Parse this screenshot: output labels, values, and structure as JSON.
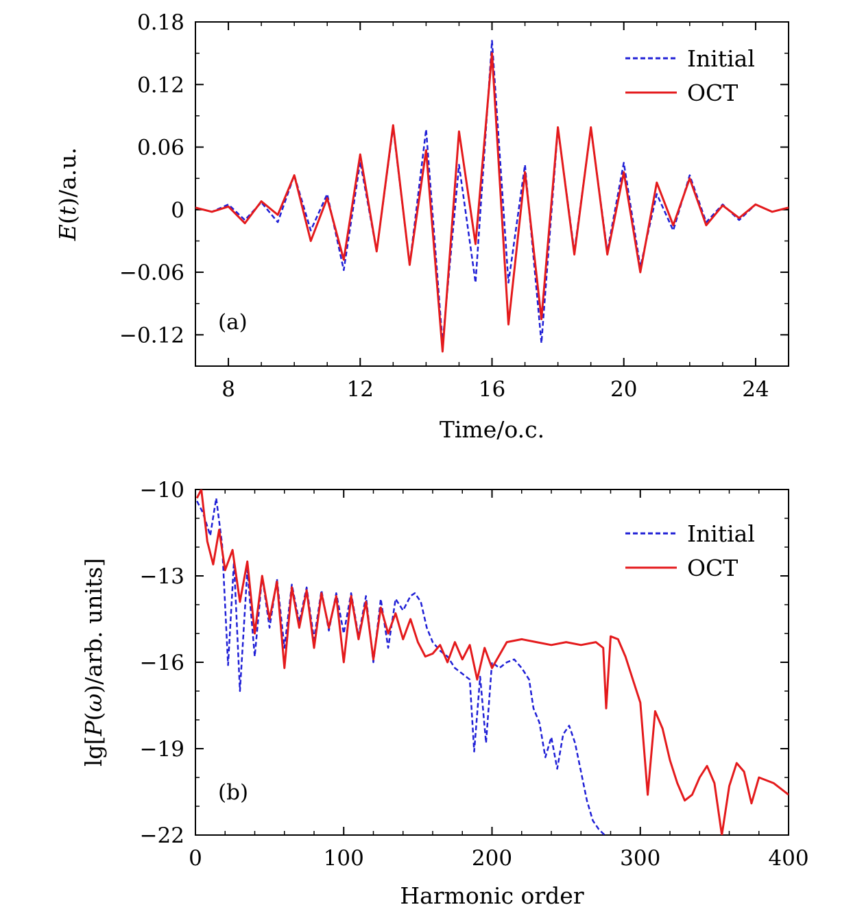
{
  "chart_data": [
    {
      "type": "line",
      "panel_label": "(a)",
      "xlabel": "Time/o.c.",
      "ylabel": "E(t)/a.u.",
      "xlim": [
        7,
        25
      ],
      "ylim": [
        -0.15,
        0.18
      ],
      "xticks": [
        8,
        12,
        16,
        20,
        24
      ],
      "xtick_labels": [
        "8",
        "12",
        "16",
        "20",
        "24"
      ],
      "yticks": [
        -0.12,
        -0.06,
        0,
        0.06,
        0.12,
        0.18
      ],
      "ytick_labels": [
        "−0.12",
        "−0.06",
        "0",
        "0.06",
        "0.12",
        "0.18"
      ],
      "legend": {
        "position": "top-right",
        "entries": [
          "Initial",
          "OCT"
        ]
      },
      "series": [
        {
          "name": "Initial",
          "style": "dashed",
          "color": "#1f1fd6",
          "x": [
            7,
            7.5,
            8,
            8.5,
            9,
            9.5,
            10,
            10.5,
            11,
            11.5,
            12,
            12.5,
            13,
            13.5,
            14,
            14.5,
            15,
            15.5,
            16,
            16.5,
            17,
            17.5,
            18,
            18.5,
            19,
            19.5,
            20,
            20.5,
            21,
            21.5,
            22,
            22.5,
            23,
            23.5,
            24,
            24.5,
            25
          ],
          "y": [
            0.002,
            -0.002,
            0.005,
            -0.01,
            0.007,
            -0.012,
            0.033,
            -0.02,
            0.015,
            -0.058,
            0.046,
            -0.04,
            0.079,
            -0.053,
            0.077,
            -0.128,
            0.043,
            -0.07,
            0.162,
            -0.07,
            0.043,
            -0.128,
            0.078,
            -0.04,
            0.078,
            -0.04,
            0.045,
            -0.055,
            0.015,
            -0.02,
            0.033,
            -0.012,
            0.005,
            -0.01,
            0.005,
            -0.002,
            0.002
          ]
        },
        {
          "name": "OCT",
          "style": "solid",
          "color": "#e41a1c",
          "x": [
            7,
            7.5,
            8,
            8.5,
            9,
            9.5,
            10,
            10.5,
            11,
            11.5,
            12,
            12.5,
            13,
            13.5,
            14,
            14.5,
            15,
            15.5,
            16,
            16.5,
            17,
            17.5,
            18,
            18.5,
            19,
            19.5,
            20,
            20.5,
            21,
            21.5,
            22,
            22.5,
            23,
            23.5,
            24,
            24.5,
            25
          ],
          "y": [
            0.002,
            -0.002,
            0.003,
            -0.013,
            0.008,
            -0.005,
            0.033,
            -0.03,
            0.011,
            -0.048,
            0.053,
            -0.04,
            0.081,
            -0.053,
            0.057,
            -0.136,
            0.075,
            -0.033,
            0.15,
            -0.11,
            0.036,
            -0.105,
            0.079,
            -0.043,
            0.079,
            -0.043,
            0.036,
            -0.06,
            0.026,
            -0.015,
            0.03,
            -0.015,
            0.004,
            -0.008,
            0.005,
            -0.002,
            0.002
          ]
        }
      ]
    },
    {
      "type": "line",
      "panel_label": "(b)",
      "xlabel": "Harmonic order",
      "ylabel": "lg[P(ω)/arb. units]",
      "xlim": [
        0,
        400
      ],
      "ylim": [
        -22,
        -10
      ],
      "xticks": [
        0,
        100,
        200,
        300,
        400
      ],
      "xtick_labels": [
        "0",
        "100",
        "200",
        "300",
        "400"
      ],
      "yticks": [
        -22,
        -19,
        -16,
        -13,
        -10
      ],
      "ytick_labels": [
        "−22",
        "−19",
        "−16",
        "−13",
        "−10"
      ],
      "legend": {
        "position": "top-right",
        "entries": [
          "Initial",
          "OCT"
        ]
      },
      "series": [
        {
          "name": "Initial",
          "style": "dashed",
          "color": "#1f1fd6",
          "x": [
            1,
            5,
            10,
            14,
            18,
            22,
            26,
            30,
            35,
            40,
            45,
            50,
            55,
            60,
            65,
            70,
            75,
            80,
            85,
            90,
            95,
            100,
            105,
            110,
            115,
            120,
            125,
            130,
            135,
            140,
            145,
            148,
            152,
            156,
            160,
            165,
            170,
            175,
            180,
            185,
            188,
            192,
            196,
            200,
            205,
            210,
            215,
            220,
            225,
            228,
            232,
            236,
            240,
            244,
            248,
            252,
            256,
            260,
            264,
            268,
            272,
            276
          ],
          "y": [
            -10.4,
            -10.8,
            -11.6,
            -10.3,
            -11.9,
            -16.1,
            -12.5,
            -17.0,
            -12.8,
            -15.8,
            -13.0,
            -14.8,
            -13.1,
            -15.5,
            -13.3,
            -14.6,
            -13.4,
            -15.2,
            -13.5,
            -14.9,
            -13.6,
            -15.0,
            -13.6,
            -15.1,
            -13.7,
            -16.0,
            -13.8,
            -15.5,
            -13.8,
            -14.2,
            -13.7,
            -13.6,
            -13.9,
            -14.8,
            -15.3,
            -15.6,
            -15.8,
            -16.2,
            -16.4,
            -16.6,
            -19.1,
            -16.5,
            -18.8,
            -16.0,
            -16.2,
            -16.0,
            -15.9,
            -16.2,
            -16.6,
            -17.6,
            -18.1,
            -19.3,
            -18.6,
            -19.7,
            -18.5,
            -18.2,
            -18.8,
            -19.8,
            -20.8,
            -21.5,
            -21.8,
            -22.0
          ]
        },
        {
          "name": "OCT",
          "style": "solid",
          "color": "#e41a1c",
          "x": [
            1,
            4,
            8,
            12,
            16,
            20,
            25,
            30,
            35,
            40,
            45,
            50,
            55,
            60,
            65,
            70,
            75,
            80,
            85,
            90,
            95,
            100,
            105,
            110,
            115,
            120,
            125,
            130,
            135,
            140,
            145,
            150,
            155,
            160,
            165,
            170,
            175,
            180,
            185,
            190,
            195,
            200,
            210,
            220,
            230,
            240,
            250,
            260,
            270,
            275,
            277,
            280,
            285,
            290,
            295,
            300,
            305,
            310,
            315,
            320,
            325,
            330,
            335,
            340,
            345,
            350,
            355,
            360,
            365,
            370,
            375,
            380,
            390,
            400
          ],
          "y": [
            -10.3,
            -10.0,
            -11.8,
            -12.6,
            -11.4,
            -12.8,
            -12.1,
            -13.9,
            -12.5,
            -15.0,
            -13.0,
            -14.5,
            -13.2,
            -16.2,
            -13.4,
            -14.8,
            -13.5,
            -15.5,
            -13.6,
            -14.8,
            -13.7,
            -16.0,
            -13.7,
            -15.2,
            -13.9,
            -15.9,
            -14.1,
            -15.0,
            -14.3,
            -15.2,
            -14.5,
            -15.3,
            -15.8,
            -15.7,
            -15.4,
            -16.0,
            -15.3,
            -15.9,
            -15.4,
            -16.6,
            -15.5,
            -16.2,
            -15.3,
            -15.2,
            -15.3,
            -15.4,
            -15.3,
            -15.4,
            -15.3,
            -15.5,
            -17.6,
            -15.1,
            -15.2,
            -15.8,
            -16.6,
            -17.4,
            -20.6,
            -17.7,
            -18.3,
            -19.4,
            -20.2,
            -20.8,
            -20.6,
            -20.0,
            -19.6,
            -20.2,
            -22.0,
            -20.3,
            -19.5,
            -19.8,
            -20.9,
            -20.0,
            -20.2,
            -20.6
          ]
        }
      ]
    }
  ]
}
